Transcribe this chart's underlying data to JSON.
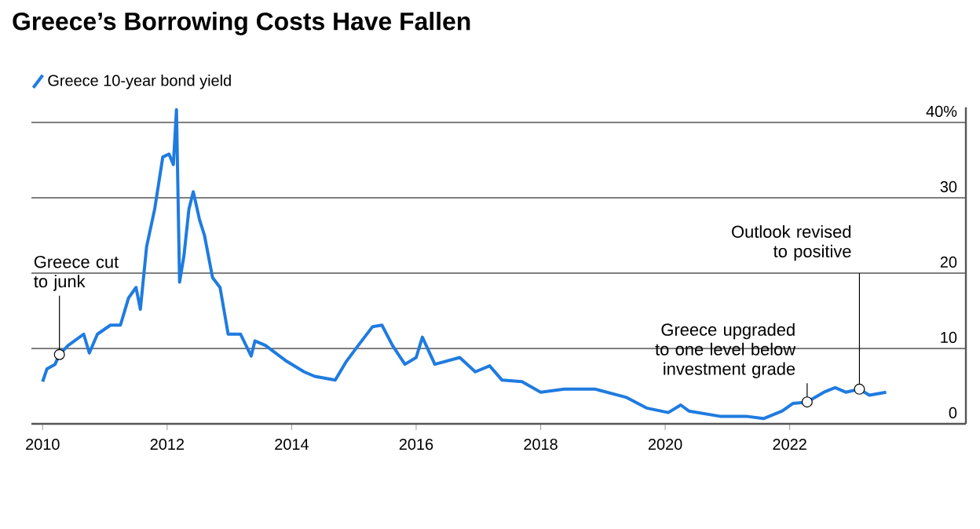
{
  "chart_data": {
    "type": "line",
    "title": "Greece’s Borrowing Costs Have Fallen",
    "x": [
      2010.0,
      2010.07,
      2010.2,
      2010.27,
      2010.41,
      2010.66,
      2010.75,
      2010.88,
      2011.09,
      2011.25,
      2011.38,
      2011.5,
      2011.57,
      2011.67,
      2011.8,
      2011.93,
      2012.03,
      2012.1,
      2012.15,
      2012.2,
      2012.27,
      2012.35,
      2012.42,
      2012.52,
      2012.6,
      2012.73,
      2012.85,
      2012.98,
      2013.18,
      2013.35,
      2013.41,
      2013.58,
      2013.92,
      2014.2,
      2014.37,
      2014.7,
      2014.88,
      2015.07,
      2015.3,
      2015.45,
      2015.62,
      2015.82,
      2016.0,
      2016.1,
      2016.3,
      2016.7,
      2016.95,
      2017.18,
      2017.38,
      2017.7,
      2018.0,
      2018.38,
      2018.88,
      2019.38,
      2019.7,
      2020.05,
      2020.25,
      2020.38,
      2020.88,
      2021.3,
      2021.58,
      2021.88,
      2022.05,
      2022.28,
      2022.55,
      2022.73,
      2022.9,
      2023.12,
      2023.28,
      2023.55
    ],
    "series": [
      {
        "name": "Greece 10-year bond yield",
        "color": "#1f7be0",
        "values": [
          5.6,
          7.3,
          7.9,
          9.2,
          10.4,
          11.9,
          9.4,
          11.9,
          13.1,
          13.1,
          16.7,
          18.1,
          15.2,
          23.5,
          28.5,
          35.4,
          35.8,
          34.4,
          41.7,
          18.8,
          22.3,
          28.5,
          30.8,
          27.1,
          25.0,
          19.4,
          18.1,
          11.9,
          11.9,
          9.0,
          11.0,
          10.4,
          8.3,
          6.9,
          6.3,
          5.8,
          8.3,
          10.4,
          12.9,
          13.1,
          10.4,
          7.9,
          8.8,
          11.5,
          7.9,
          8.8,
          6.9,
          7.7,
          5.8,
          5.6,
          4.2,
          4.6,
          4.6,
          3.5,
          2.1,
          1.5,
          2.5,
          1.7,
          1.0,
          1.0,
          0.7,
          1.7,
          2.7,
          2.9,
          4.2,
          4.8,
          4.2,
          4.6,
          3.8,
          4.2
        ]
      }
    ],
    "xlim": [
      2009.82,
      2024.83
    ],
    "xticks": [
      2010,
      2012,
      2014,
      2016,
      2018,
      2020,
      2022
    ],
    "ylim": [
      0,
      42
    ],
    "yticks": [
      0,
      10,
      20,
      30,
      {
        "value": 40,
        "label": "40%"
      }
    ],
    "grid": "y",
    "legend": "top left",
    "line_style": "solid",
    "marker": "none",
    "annotations": [
      {
        "text": "Greece cut to junk",
        "x": 2010.27,
        "y": 9.2
      },
      {
        "text": "Greece upgraded to one level below investment grade",
        "x": 2022.28,
        "y": 2.9
      },
      {
        "text": "Outlook revised to positive",
        "x": 2023.12,
        "y": 4.6
      }
    ]
  }
}
